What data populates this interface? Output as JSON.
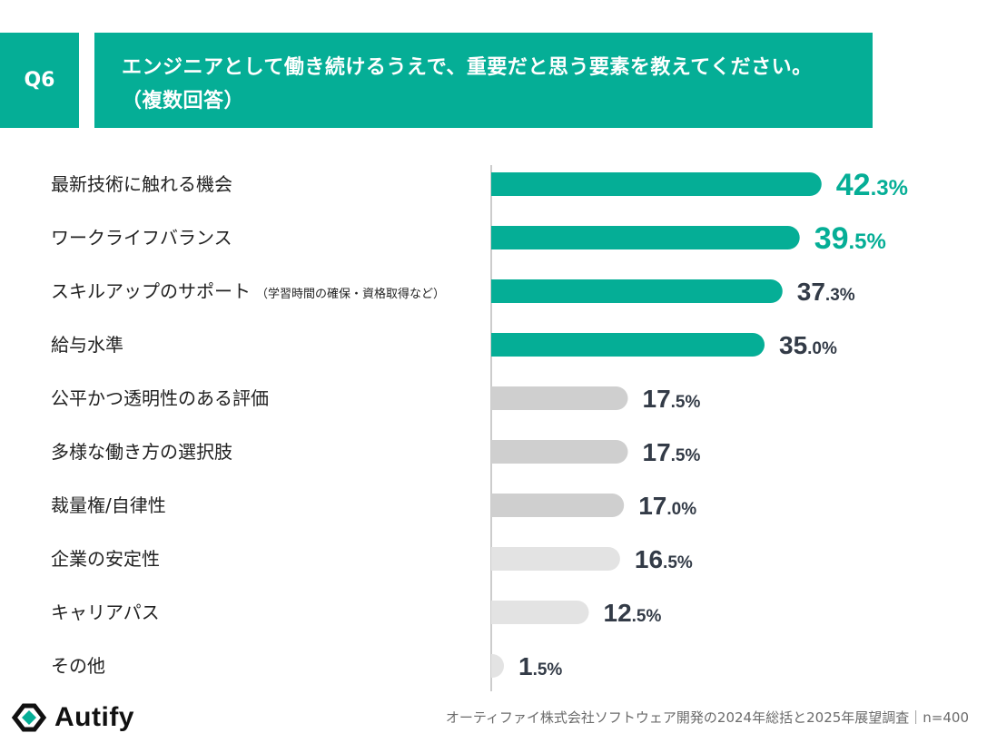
{
  "header": {
    "question_number": "Q6",
    "title": "エンジニアとして働き続けるうえで、重要だと思う要素を教えてください。（複数回答）"
  },
  "chart_data": {
    "type": "bar",
    "orientation": "horizontal",
    "categories": [
      {
        "label": "最新技術に触れる機会",
        "sub": ""
      },
      {
        "label": "ワークライフバランス",
        "sub": ""
      },
      {
        "label": "スキルアップのサポート",
        "sub": "（学習時間の確保・資格取得など）"
      },
      {
        "label": "給与水準",
        "sub": ""
      },
      {
        "label": "公平かつ透明性のある評価",
        "sub": ""
      },
      {
        "label": "多様な働き方の選択肢",
        "sub": ""
      },
      {
        "label": "裁量権/自律性",
        "sub": ""
      },
      {
        "label": "企業の安定性",
        "sub": ""
      },
      {
        "label": "キャリアパス",
        "sub": ""
      },
      {
        "label": "その他",
        "sub": ""
      }
    ],
    "values": [
      42.3,
      39.5,
      37.3,
      35.0,
      17.5,
      17.5,
      17.0,
      16.5,
      12.5,
      1.5
    ],
    "value_labels": [
      {
        "int": "42",
        "dec": ".3%"
      },
      {
        "int": "39",
        "dec": ".5%"
      },
      {
        "int": "37",
        "dec": ".3%"
      },
      {
        "int": "35",
        "dec": ".0%"
      },
      {
        "int": "17",
        "dec": ".5%"
      },
      {
        "int": "17",
        "dec": ".5%"
      },
      {
        "int": "17",
        "dec": ".0%"
      },
      {
        "int": "16",
        "dec": ".5%"
      },
      {
        "int": "12",
        "dec": ".5%"
      },
      {
        "int": "1",
        "dec": ".5%"
      }
    ],
    "bar_colors": [
      "#05ae96",
      "#05ae96",
      "#05ae96",
      "#05ae96",
      "#cfcfcf",
      "#cfcfcf",
      "#cfcfcf",
      "#e3e3e3",
      "#e3e3e3",
      "#e3e3e3"
    ],
    "label_colors": [
      "#05ae96",
      "#05ae96",
      "#333b47",
      "#333b47",
      "#333b47",
      "#333b47",
      "#333b47",
      "#333b47",
      "#333b47",
      "#333b47"
    ],
    "highlight_top": 2,
    "xlim": [
      0,
      45
    ],
    "grid": false,
    "legend": "none"
  },
  "footer": {
    "note": "オーティファイ株式会社ソフトウェア開発の2024年総括と2025年展望調査｜n=400",
    "logo_text": "Autify"
  },
  "colors": {
    "accent": "#05ae96"
  }
}
